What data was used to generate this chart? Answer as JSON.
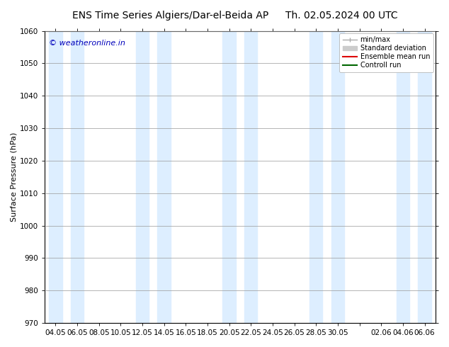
{
  "title_left": "ENS Time Series Algiers/Dar-el-Beida AP",
  "title_right": "Th. 02.05.2024 00 UTC",
  "ylabel": "Surface Pressure (hPa)",
  "watermark": "© weatheronline.in",
  "ylim": [
    970,
    1060
  ],
  "yticks": [
    970,
    980,
    990,
    1000,
    1010,
    1020,
    1030,
    1040,
    1050,
    1060
  ],
  "xtick_labels": [
    "04.05",
    "06.05",
    "08.05",
    "10.05",
    "12.05",
    "14.05",
    "16.05",
    "18.05",
    "20.05",
    "22.05",
    "24.05",
    "26.05",
    "28.05",
    "30.05",
    "",
    "02.06",
    "04.06",
    "06.06"
  ],
  "bg_color": "#ffffff",
  "plot_bg_color": "#ffffff",
  "band_color": "#ddeeff",
  "n_xticks": 18,
  "legend_items": [
    {
      "label": "min/max",
      "color": "#aaaaaa",
      "lw": 1.0
    },
    {
      "label": "Standard deviation",
      "color": "#cccccc",
      "lw": 4
    },
    {
      "label": "Ensemble mean run",
      "color": "#dd0000",
      "lw": 1.5
    },
    {
      "label": "Controll run",
      "color": "#006600",
      "lw": 1.5
    }
  ],
  "title_fontsize": 10,
  "axis_label_fontsize": 8,
  "tick_fontsize": 7.5,
  "watermark_color": "#0000bb",
  "watermark_fontsize": 8,
  "grid_color": "#999999",
  "grid_lw": 0.5,
  "band_centers": [
    0,
    1,
    4,
    5,
    8,
    9,
    12,
    13,
    16,
    17
  ],
  "legend_fontsize": 7,
  "right_spine_visible": true
}
